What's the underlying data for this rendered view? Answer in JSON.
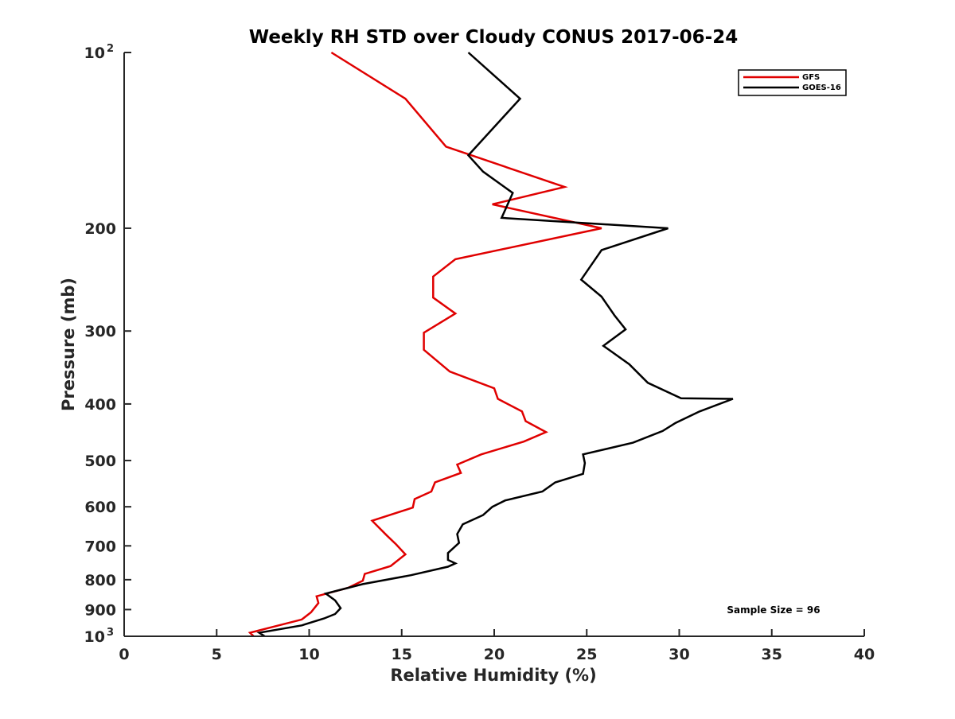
{
  "chart_data": {
    "type": "line",
    "title": "Weekly RH STD over Cloudy CONUS 2017-06-24",
    "xlabel": "Relative Humidity (%)",
    "ylabel": "Pressure (mb)",
    "xlim": [
      0,
      40
    ],
    "ylim": [
      100,
      1000
    ],
    "y_scale": "log",
    "y_reversed": true,
    "grid": false,
    "legend_position": "top-right",
    "x_ticks": [
      {
        "value": 0,
        "label": "0"
      },
      {
        "value": 5,
        "label": "5"
      },
      {
        "value": 10,
        "label": "10"
      },
      {
        "value": 15,
        "label": "15"
      },
      {
        "value": 20,
        "label": "20"
      },
      {
        "value": 25,
        "label": "25"
      },
      {
        "value": 30,
        "label": "30"
      },
      {
        "value": 35,
        "label": "35"
      },
      {
        "value": 40,
        "label": "40"
      }
    ],
    "y_ticks": [
      {
        "value": 100,
        "label": "10",
        "sup": "2"
      },
      {
        "value": 200,
        "label": "200"
      },
      {
        "value": 300,
        "label": "300"
      },
      {
        "value": 400,
        "label": "400"
      },
      {
        "value": 500,
        "label": "500"
      },
      {
        "value": 600,
        "label": "600"
      },
      {
        "value": 700,
        "label": "700"
      },
      {
        "value": 800,
        "label": "800"
      },
      {
        "value": 900,
        "label": "900"
      },
      {
        "value": 1000,
        "label": "10",
        "sup": "3"
      }
    ],
    "annotation": "Sample Size = 96",
    "series": [
      {
        "name": "GFS",
        "color": "#e00000",
        "points": [
          [
            11.2,
            100
          ],
          [
            15.2,
            120
          ],
          [
            17.4,
            145
          ],
          [
            23.8,
            170
          ],
          [
            19.9,
            182
          ],
          [
            25.8,
            200
          ],
          [
            17.9,
            226
          ],
          [
            16.7,
            242
          ],
          [
            16.7,
            263
          ],
          [
            17.9,
            280
          ],
          [
            16.2,
            302
          ],
          [
            16.2,
            323
          ],
          [
            17.6,
            352
          ],
          [
            20.0,
            376
          ],
          [
            20.2,
            392
          ],
          [
            21.5,
            412
          ],
          [
            21.7,
            428
          ],
          [
            22.8,
            447
          ],
          [
            21.6,
            464
          ],
          [
            19.3,
            488
          ],
          [
            18.0,
            508
          ],
          [
            18.2,
            525
          ],
          [
            16.8,
            545
          ],
          [
            16.6,
            565
          ],
          [
            15.7,
            582
          ],
          [
            15.6,
            602
          ],
          [
            13.4,
            634
          ],
          [
            14.2,
            672
          ],
          [
            14.7,
            696
          ],
          [
            15.2,
            724
          ],
          [
            14.4,
            758
          ],
          [
            13.0,
            782
          ],
          [
            12.9,
            803
          ],
          [
            12.1,
            826
          ],
          [
            10.4,
            854
          ],
          [
            10.5,
            877
          ],
          [
            10.1,
            910
          ],
          [
            9.6,
            936
          ],
          [
            6.8,
            986
          ],
          [
            7.0,
            1000
          ]
        ]
      },
      {
        "name": "GOES-16",
        "color": "#000000",
        "points": [
          [
            18.6,
            100
          ],
          [
            21.4,
            120
          ],
          [
            18.6,
            150
          ],
          [
            19.4,
            160
          ],
          [
            21.0,
            174
          ],
          [
            20.4,
            192
          ],
          [
            29.4,
            200
          ],
          [
            25.8,
            218
          ],
          [
            24.7,
            245
          ],
          [
            25.8,
            262
          ],
          [
            26.5,
            282
          ],
          [
            27.1,
            298
          ],
          [
            25.9,
            318
          ],
          [
            27.3,
            342
          ],
          [
            28.3,
            368
          ],
          [
            30.1,
            391
          ],
          [
            32.9,
            392
          ],
          [
            31.1,
            412
          ],
          [
            29.8,
            431
          ],
          [
            29.1,
            445
          ],
          [
            27.5,
            466
          ],
          [
            24.8,
            488
          ],
          [
            24.9,
            505
          ],
          [
            24.8,
            527
          ],
          [
            23.3,
            545
          ],
          [
            22.6,
            565
          ],
          [
            20.6,
            585
          ],
          [
            19.9,
            600
          ],
          [
            19.4,
            620
          ],
          [
            18.3,
            643
          ],
          [
            18.0,
            668
          ],
          [
            18.1,
            692
          ],
          [
            17.5,
            720
          ],
          [
            17.5,
            740
          ],
          [
            17.9,
            750
          ],
          [
            17.5,
            760
          ],
          [
            15.5,
            786
          ],
          [
            12.9,
            814
          ],
          [
            10.9,
            845
          ],
          [
            11.4,
            868
          ],
          [
            11.7,
            895
          ],
          [
            11.4,
            916
          ],
          [
            10.8,
            932
          ],
          [
            9.6,
            958
          ],
          [
            7.3,
            986
          ],
          [
            7.6,
            1000
          ]
        ]
      }
    ]
  }
}
